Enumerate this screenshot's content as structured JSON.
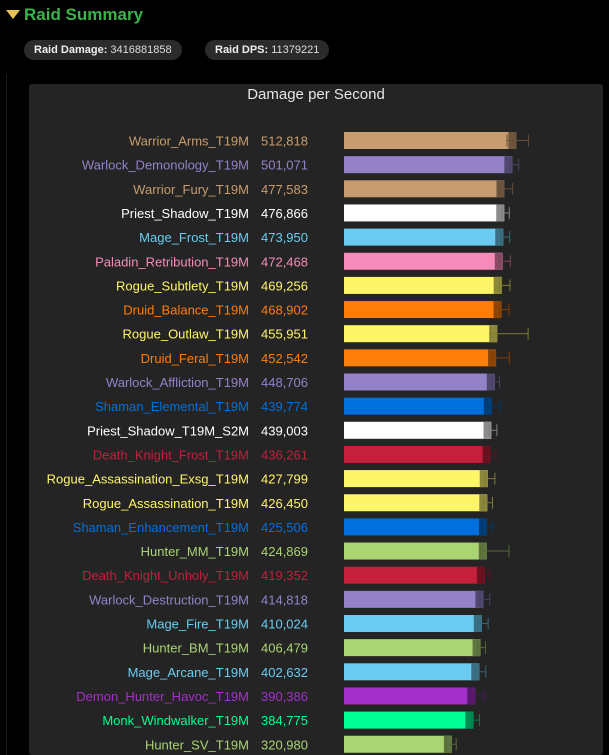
{
  "header": {
    "title": "Raid Summary",
    "icon": "triangle-down-icon",
    "accent": "#3cb34a"
  },
  "stats": {
    "damage_label": "Raid Damage:",
    "damage_value": "3416881858",
    "dps_label": "Raid DPS:",
    "dps_value": "11379221"
  },
  "chart_data": {
    "type": "bar",
    "orientation": "horizontal",
    "title": "Damage per Second",
    "xlim": [
      0,
      540000
    ],
    "grid": false,
    "legend": "none",
    "error_bars": true,
    "categories": [
      "Warrior_Arms_T19M",
      "Warlock_Demonology_T19M",
      "Warrior_Fury_T19M",
      "Priest_Shadow_T19M",
      "Mage_Frost_T19M",
      "Paladin_Retribution_T19M",
      "Rogue_Subtlety_T19M",
      "Druid_Balance_T19M",
      "Rogue_Outlaw_T19M",
      "Druid_Feral_T19M",
      "Warlock_Affliction_T19M",
      "Shaman_Elemental_T19M",
      "Priest_Shadow_T19M_S2M",
      "Death_Knight_Frost_T19M",
      "Rogue_Assassination_Exsg_T19M",
      "Rogue_Assassination_T19M",
      "Shaman_Enhancement_T19M",
      "Hunter_MM_T19M",
      "Death_Knight_Unholy_T19M",
      "Warlock_Destruction_T19M",
      "Mage_Fire_T19M",
      "Hunter_BM_T19M",
      "Mage_Arcane_T19M",
      "Demon_Hunter_Havoc_T19M",
      "Monk_Windwalker_T19M",
      "Hunter_SV_T19M"
    ],
    "values": [
      512818,
      501071,
      477583,
      476866,
      473950,
      472468,
      469256,
      468902,
      455951,
      452542,
      448706,
      439774,
      439003,
      436261,
      427799,
      426450,
      425506,
      424869,
      419352,
      414818,
      410024,
      406479,
      402632,
      390386,
      384775,
      320980
    ],
    "value_labels": [
      "512,818",
      "501,071",
      "477,583",
      "476,866",
      "473,950",
      "472,468",
      "469,256",
      "468,902",
      "455,951",
      "452,542",
      "448,706",
      "439,774",
      "439,003",
      "436,261",
      "427,799",
      "426,450",
      "425,506",
      "424,869",
      "419,352",
      "414,818",
      "410,024",
      "406,479",
      "402,632",
      "390,386",
      "384,775",
      "320,980"
    ],
    "error_low": [
      485000,
      493000,
      463000,
      470000,
      467000,
      463000,
      462000,
      462000,
      436000,
      440000,
      441000,
      427000,
      431000,
      425000,
      420000,
      415000,
      410000,
      408000,
      411000,
      404000,
      398000,
      398000,
      391000,
      375000,
      380000,
      305000
    ],
    "error_high": [
      549000,
      520000,
      502000,
      492000,
      493000,
      495000,
      494000,
      491000,
      548000,
      492000,
      463000,
      464000,
      455000,
      452000,
      449000,
      442000,
      442000,
      491000,
      434000,
      434000,
      429000,
      421000,
      422000,
      416000,
      403000,
      334000
    ],
    "colors": [
      "#c79c6e",
      "#9482c9",
      "#c79c6e",
      "#ffffff",
      "#69ccf0",
      "#f58cba",
      "#fff569",
      "#ff7d0a",
      "#fff569",
      "#ff7d0a",
      "#9482c9",
      "#0070de",
      "#ffffff",
      "#c41f3b",
      "#fff569",
      "#fff569",
      "#0070de",
      "#abd473",
      "#c41f3b",
      "#9482c9",
      "#69ccf0",
      "#abd473",
      "#69ccf0",
      "#a330c9",
      "#00ff96",
      "#abd473"
    ]
  }
}
